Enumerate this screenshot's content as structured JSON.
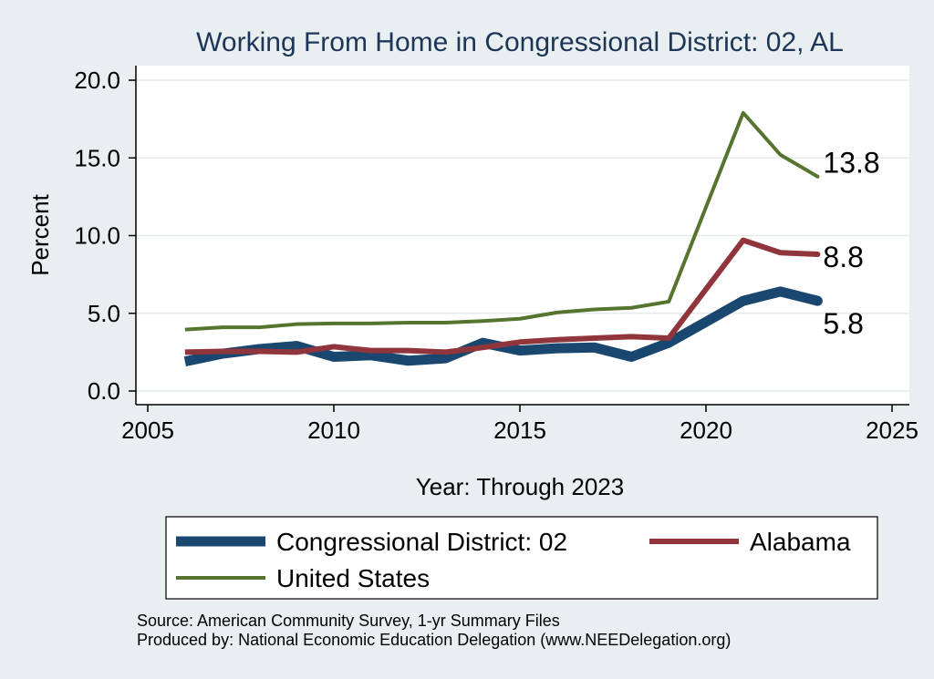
{
  "chart_data": {
    "type": "line",
    "title": "Working From Home in Congressional District: 02, AL",
    "xlabel": "Year: Through 2023",
    "ylabel": "Percent",
    "xlim": [
      2005,
      2025
    ],
    "ylim": [
      0,
      20
    ],
    "xticks": [
      "2005",
      "2010",
      "2015",
      "2020",
      "2025"
    ],
    "yticks": [
      "0.0",
      "5.0",
      "10.0",
      "15.0",
      "20.0"
    ],
    "grid": true,
    "legend_position": "bottom",
    "x": [
      2006,
      2007,
      2008,
      2009,
      2010,
      2011,
      2012,
      2013,
      2014,
      2015,
      2016,
      2017,
      2018,
      2019,
      2021,
      2022,
      2023
    ],
    "series": [
      {
        "name": "Congressional District: 02",
        "color": "#1a476f",
        "values": [
          1.9,
          2.4,
          2.7,
          2.9,
          2.2,
          2.3,
          1.95,
          2.1,
          3.1,
          2.6,
          2.75,
          2.8,
          2.2,
          3.1,
          5.8,
          6.4,
          5.8
        ],
        "end_label": "5.8"
      },
      {
        "name": "Alabama",
        "color": "#90353b",
        "values": [
          2.5,
          2.55,
          2.55,
          2.5,
          2.85,
          2.6,
          2.6,
          2.5,
          2.8,
          3.15,
          3.3,
          3.4,
          3.5,
          3.4,
          9.7,
          8.9,
          8.8
        ],
        "end_label": "8.8"
      },
      {
        "name": "United States",
        "color": "#55752f",
        "values": [
          3.95,
          4.1,
          4.1,
          4.3,
          4.35,
          4.35,
          4.4,
          4.4,
          4.5,
          4.65,
          5.05,
          5.25,
          5.35,
          5.75,
          17.9,
          15.2,
          13.8
        ],
        "end_label": "13.8"
      }
    ],
    "legend_labels": [
      "Congressional District: 02",
      "Alabama",
      "United States"
    ]
  },
  "footer": {
    "source": "Source: American Community Survey, 1-yr Summary Files",
    "produced_by": "Produced by: National Economic Education Delegation (www.NEEDelegation.org)"
  }
}
